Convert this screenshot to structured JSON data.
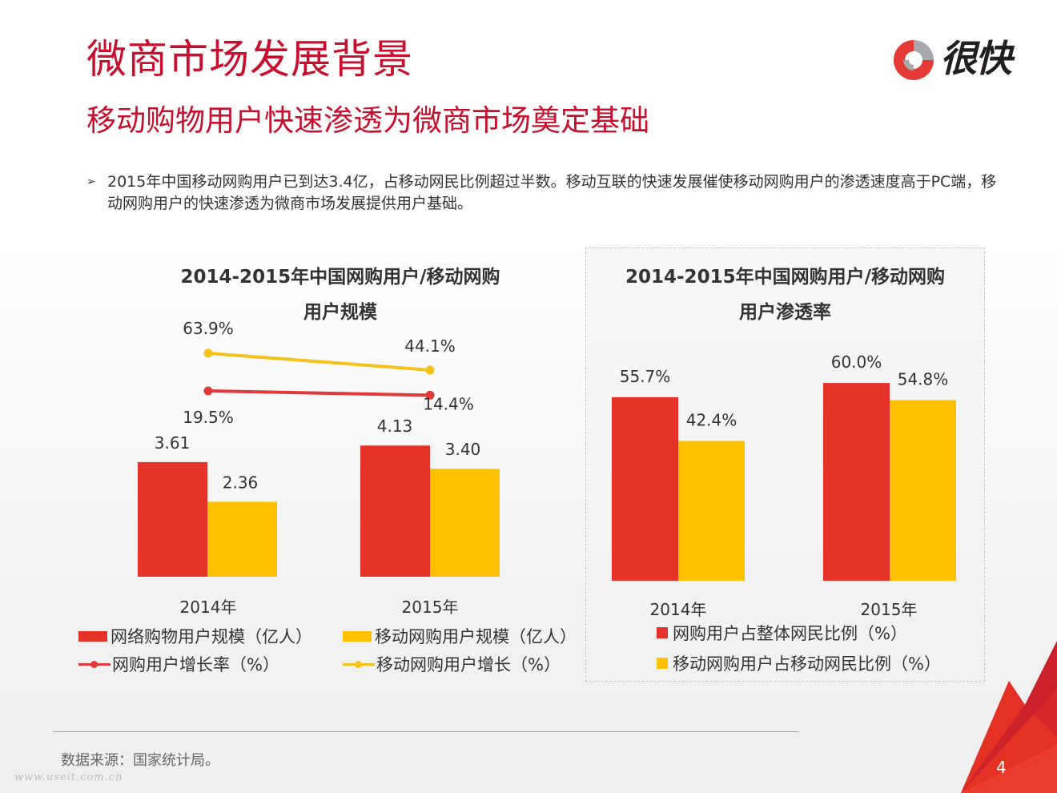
{
  "header": {
    "title": "微商市场发展背景",
    "subtitle": "移动购物用户快速渗透为微商市场奠定基础",
    "logo_text": "很快",
    "logo_icon": "kuai-logo-icon"
  },
  "bullet": {
    "icon": "arrow-bullet-icon",
    "text": "2015年中国移动网购用户已到达3.4亿，占移动网民比例超过半数。移动互联的快速发展催使移动网购用户的渗透速度高于PC端，移动网购用户的快速渗透为微商市场发展提供用户基础。"
  },
  "colors": {
    "title_red": "#c8102e",
    "bar_red": "#e5332a",
    "bar_yellow": "#ffc000",
    "line_yellow": "#f5c21b",
    "line_red": "#e03a3a"
  },
  "chart_data": [
    {
      "type": "bar",
      "title": "2014-2015年中国网购用户/移动网购用户规模",
      "title_lines": [
        "2014-2015年中国网购用户/移动网购",
        "用户规模"
      ],
      "categories": [
        "2014年",
        "2015年"
      ],
      "series": [
        {
          "name": "网络购物用户规模（亿人）",
          "kind": "bar",
          "color": "#e5332a",
          "values": [
            3.61,
            4.13
          ],
          "labels": [
            "3.61",
            "4.13"
          ]
        },
        {
          "name": "移动网购用户规模（亿人）",
          "kind": "bar",
          "color": "#ffc000",
          "values": [
            2.36,
            3.4
          ],
          "labels": [
            "2.36",
            "3.40"
          ]
        },
        {
          "name": "网购用户增长率（%）",
          "kind": "line",
          "color": "#e03a3a",
          "values": [
            19.5,
            14.4
          ],
          "labels": [
            "19.5%",
            "14.4%"
          ]
        },
        {
          "name": "移动网购用户增长（%）",
          "kind": "line",
          "color": "#f5c21b",
          "values": [
            63.9,
            44.1
          ],
          "labels": [
            "63.9%",
            "44.1%"
          ]
        }
      ],
      "xlabel": "",
      "ylabel": "",
      "ylim": [
        0,
        4.5
      ],
      "grid": false,
      "legend": "bottom"
    },
    {
      "type": "bar",
      "title": "2014-2015年中国网购用户/移动网购用户渗透率",
      "title_lines": [
        "2014-2015年中国网购用户/移动网购",
        "用户渗透率"
      ],
      "categories": [
        "2014年",
        "2015年"
      ],
      "series": [
        {
          "name": "网购用户占整体网民比例（%）",
          "color": "#e5332a",
          "values": [
            55.7,
            60.0
          ],
          "labels": [
            "55.7%",
            "60.0%"
          ]
        },
        {
          "name": "移动网购用户占移动网民比例（%）",
          "color": "#ffc000",
          "values": [
            42.4,
            54.8
          ],
          "labels": [
            "42.4%",
            "54.8%"
          ]
        }
      ],
      "xlabel": "",
      "ylabel": "",
      "ylim": [
        0,
        65
      ],
      "grid": false,
      "legend": "bottom"
    }
  ],
  "footer": {
    "source": "数据来源：国家统计局。",
    "watermark": "www.useit.com.cn",
    "page_number": "4"
  }
}
